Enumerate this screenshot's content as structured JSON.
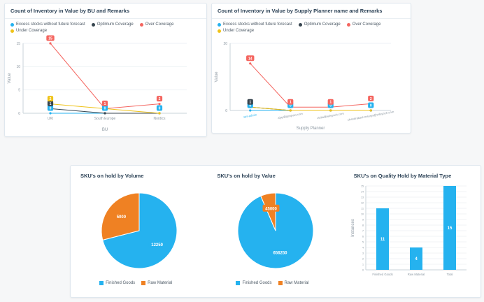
{
  "chart_data": [
    {
      "type": "line",
      "title": "Count of Inventory in Value by BU and Remarks",
      "categories": [
        "UKI",
        "South Europe",
        "Nordics"
      ],
      "xlabel": "BU",
      "ylabel": "Value",
      "ylim": [
        0,
        15
      ],
      "yticks": [
        0,
        5,
        10,
        15
      ],
      "legend_position": "top",
      "grid": true,
      "series": [
        {
          "name": "Excess stocks without future forecast",
          "color": "#25b2ef",
          "values": [
            0,
            0,
            0
          ],
          "labels": [
            0,
            0,
            0
          ]
        },
        {
          "name": "Optimum Coverage",
          "color": "#37454f",
          "values": [
            1,
            0,
            0
          ],
          "labels": [
            1,
            null,
            null
          ]
        },
        {
          "name": "Over Coverage",
          "color": "#f4655f",
          "values": [
            15,
            1,
            2
          ],
          "labels": [
            15,
            1,
            2
          ]
        },
        {
          "name": "Under Coverage",
          "color": "#efc319",
          "values": [
            2,
            1,
            0
          ],
          "labels": [
            2,
            null,
            null
          ]
        }
      ]
    },
    {
      "type": "line",
      "title": "Count of Inventory in Value by Supply Planner name and Remarks",
      "categories": [
        "sys-admin",
        "ajay@genpact.com",
        "vinita@wilsynch.com",
        "chandrakant.maurya@wilsynch.com"
      ],
      "xlabel": "Supply Planner",
      "ylabel": "Value",
      "ylim": [
        0,
        20
      ],
      "yticks": [
        0,
        20
      ],
      "legend_position": "top",
      "grid": true,
      "rotate_xticks": true,
      "xtick_small": true,
      "link_xtick": 0,
      "series": [
        {
          "name": "Excess stocks without future forecast",
          "color": "#25b2ef",
          "values": [
            0,
            0,
            0,
            0
          ],
          "labels": [
            0,
            0,
            0,
            0
          ]
        },
        {
          "name": "Optimum Coverage",
          "color": "#37454f",
          "values": [
            1,
            0,
            0,
            0
          ],
          "labels": [
            1,
            null,
            null,
            null
          ]
        },
        {
          "name": "Over Coverage",
          "color": "#f4655f",
          "values": [
            14,
            1,
            1,
            2
          ],
          "labels": [
            14,
            1,
            1,
            2
          ]
        },
        {
          "name": "Under Coverage",
          "color": "#efc319",
          "values": [
            1,
            0,
            0,
            0
          ],
          "labels": [
            null,
            null,
            null,
            null
          ]
        }
      ]
    },
    {
      "type": "pie",
      "title": "SKU's on hold by Volume",
      "slices": [
        {
          "label": "Finished Goods",
          "color": "#25b2ef",
          "value": 12250
        },
        {
          "label": "Raw Material",
          "color": "#ef8123",
          "value": 5000
        }
      ],
      "legend_position": "bottom"
    },
    {
      "type": "pie",
      "title": "SKU's on hold by Value",
      "slices": [
        {
          "label": "Finished Goods",
          "color": "#25b2ef",
          "value": 656250
        },
        {
          "label": "Raw Material",
          "color": "#ef8123",
          "value": 45000
        }
      ],
      "legend_position": "bottom"
    },
    {
      "type": "bar",
      "title": "SKU's on Quality Hold by Material Type",
      "categories": [
        "Finished Goods",
        "Raw Material",
        "Total"
      ],
      "values": [
        11,
        4,
        15
      ],
      "color": "#25b2ef",
      "xlabel": "",
      "ylabel": "Instances",
      "ylim": [
        0,
        15
      ],
      "yticks": [
        0,
        1,
        2,
        3,
        4,
        5,
        6,
        7,
        8,
        9,
        10,
        11,
        12,
        13,
        14,
        15
      ],
      "grid": true
    }
  ]
}
